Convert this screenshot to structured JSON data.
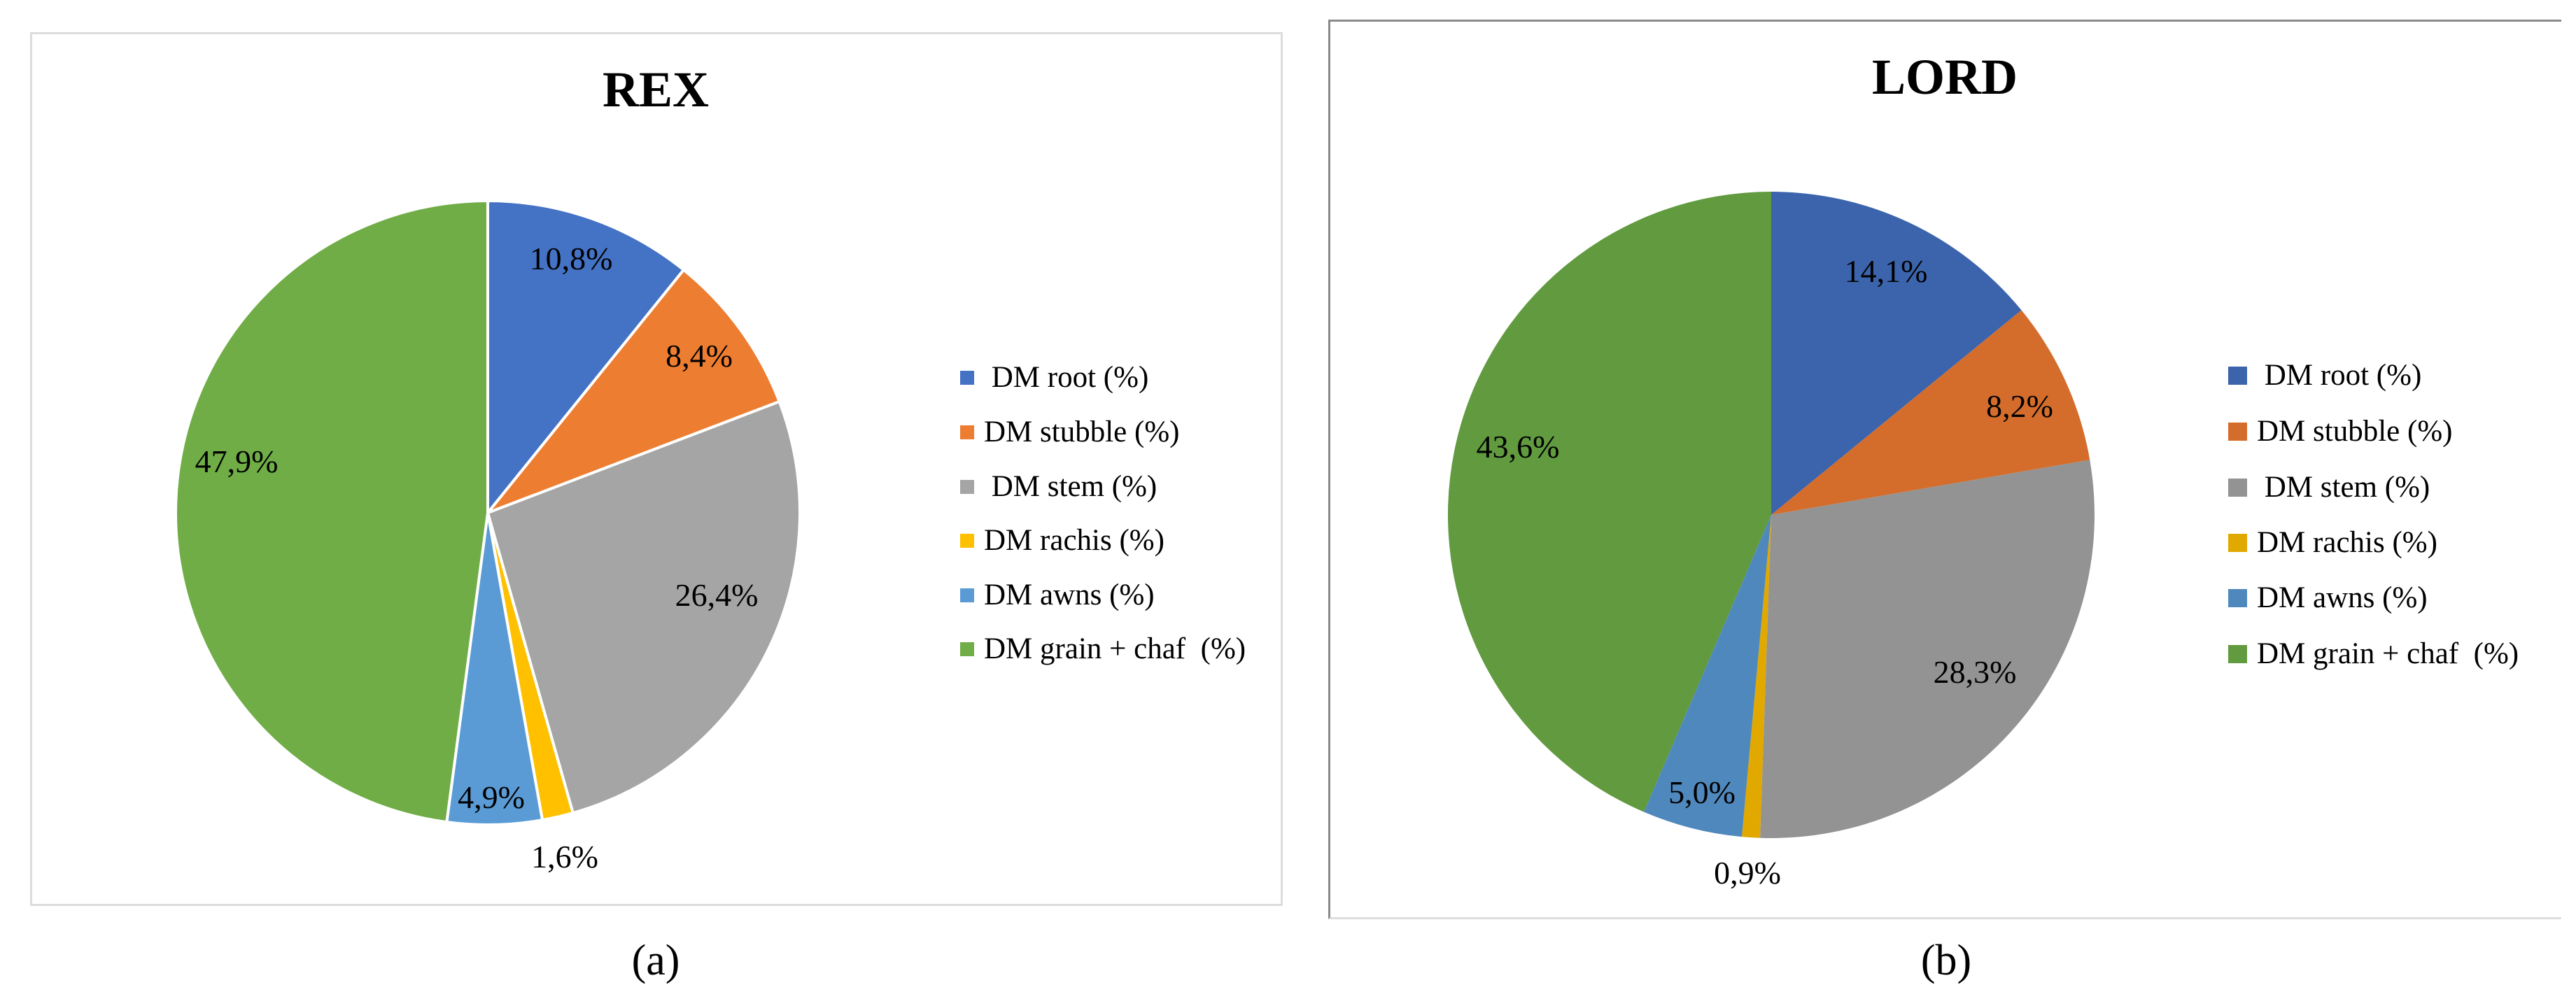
{
  "chart_data": [
    {
      "type": "pie",
      "title": "REX",
      "caption": "(a)",
      "categories": [
        "DM root (%)",
        "DM stubble (%)",
        "DM stem (%)",
        "DM rachis (%)",
        "DM awns (%)",
        "DM grain + chaf  (%)"
      ],
      "values": [
        10.8,
        8.4,
        26.4,
        1.6,
        4.9,
        47.9
      ],
      "data_labels": [
        "10,8%",
        "8,4%",
        "26,4%",
        "1,6%",
        "4,9%",
        "47,9%"
      ],
      "colors": [
        "#4472c4",
        "#ed7d31",
        "#a5a5a5",
        "#ffc000",
        "#5b9bd5",
        "#70ad47"
      ],
      "start_angle": "12 o'clock, clockwise",
      "legend_position": "right"
    },
    {
      "type": "pie",
      "title": "LORD",
      "caption": "(b)",
      "categories": [
        "DM root (%)",
        "DM stubble (%)",
        "DM stem (%)",
        "DM rachis (%)",
        "DM awns (%)",
        "DM grain + chaf  (%)"
      ],
      "values": [
        14.1,
        8.2,
        28.3,
        0.9,
        5.0,
        43.6
      ],
      "data_labels": [
        "14,1%",
        "8,2%",
        "28,3%",
        "0,9%",
        "5,0%",
        "43,6%"
      ],
      "colors": [
        "#3c64ac",
        "#d46d2c",
        "#939393",
        "#e1a800",
        "#4f88bc",
        "#619a3f"
      ],
      "start_angle": "12 o'clock, clockwise",
      "legend_position": "right"
    }
  ],
  "panels": {
    "a": {
      "title": "REX",
      "caption": "(a)",
      "legend": [
        {
          "label": " DM root (%)",
          "color": "#4472c4"
        },
        {
          "label": "DM stubble (%)",
          "color": "#ed7d31"
        },
        {
          "label": " DM stem (%)",
          "color": "#a5a5a5"
        },
        {
          "label": "DM rachis (%)",
          "color": "#ffc000"
        },
        {
          "label": "DM awns (%)",
          "color": "#5b9bd5"
        },
        {
          "label": "DM grain + chaf  (%)",
          "color": "#70ad47"
        }
      ],
      "labels": [
        "10,8%",
        "8,4%",
        "26,4%",
        "1,6%",
        "4,9%",
        "47,9%"
      ]
    },
    "b": {
      "title": "LORD",
      "caption": "(b)",
      "legend": [
        {
          "label": " DM root (%)",
          "color": "#3c64ac"
        },
        {
          "label": "DM stubble (%)",
          "color": "#d46d2c"
        },
        {
          "label": " DM stem (%)",
          "color": "#939393"
        },
        {
          "label": "DM rachis (%)",
          "color": "#e1a800"
        },
        {
          "label": "DM awns (%)",
          "color": "#4f88bc"
        },
        {
          "label": "DM grain + chaf  (%)",
          "color": "#619a3f"
        }
      ],
      "labels": [
        "14,1%",
        "8,2%",
        "28,3%",
        "0,9%",
        "5,0%",
        "43,6%"
      ]
    }
  }
}
